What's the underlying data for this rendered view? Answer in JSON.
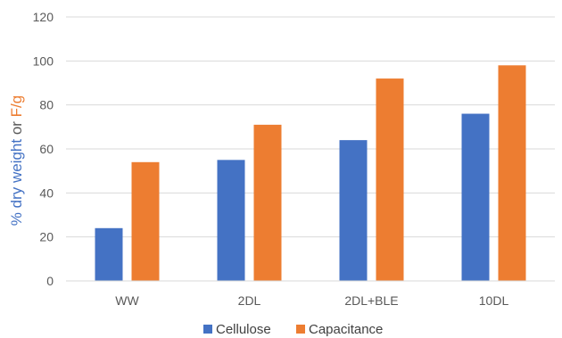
{
  "chart_data": {
    "type": "bar",
    "categories": [
      "WW",
      "2DL",
      "2DL+BLE",
      "10DL"
    ],
    "series": [
      {
        "name": "Cellulose",
        "values": [
          24,
          55,
          64,
          76
        ],
        "color": "#4472C4"
      },
      {
        "name": "Capacitance",
        "values": [
          54,
          71,
          92,
          98
        ],
        "color": "#ED7D31"
      }
    ],
    "ylabel_parts": [
      {
        "text": "% dry weight",
        "color": "#4472C4"
      },
      {
        "text": " or ",
        "color": "#595959"
      },
      {
        "text": "F/g",
        "color": "#ED7D31"
      }
    ],
    "ylim": [
      0,
      120
    ],
    "yticks": [
      0,
      20,
      40,
      60,
      80,
      100,
      120
    ],
    "grid": true,
    "legend_position": "bottom"
  }
}
